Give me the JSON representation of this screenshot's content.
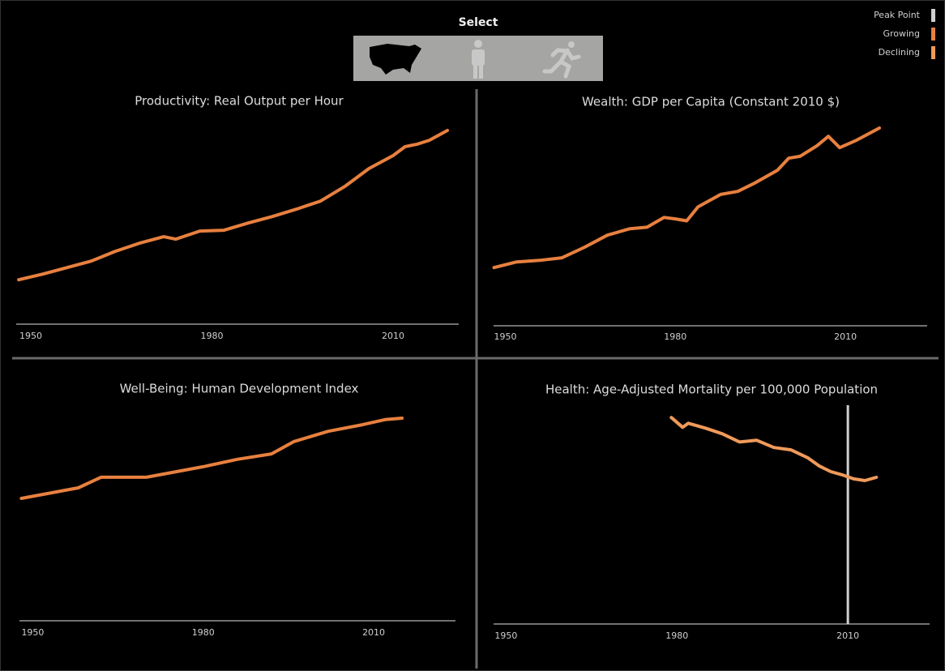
{
  "header": {
    "title": "Select"
  },
  "legend": [
    {
      "label": "Peak Point",
      "color": "#d0d0d0"
    },
    {
      "label": "Growing",
      "color": "#e8803f"
    },
    {
      "label": "Declining",
      "color": "#f09a5a"
    }
  ],
  "chart_data": [
    {
      "type": "line",
      "title": "Productivity: Real Output per Hour",
      "color": "#e8803f",
      "x": [
        1948,
        1952,
        1956,
        1960,
        1964,
        1968,
        1972,
        1974,
        1978,
        1982,
        1986,
        1990,
        1994,
        1998,
        2002,
        2006,
        2008,
        2010,
        2012,
        2014,
        2016,
        2019
      ],
      "values": [
        23.0,
        26.2,
        29.9,
        33.6,
        39.2,
        43.8,
        47.5,
        46.1,
        50.7,
        51.2,
        55.3,
        59.0,
        63.2,
        67.8,
        76.1,
        86.3,
        90.0,
        93.7,
        98.8,
        100.2,
        102.4,
        108.0
      ],
      "xlim": [
        1946,
        2022
      ],
      "xticks": [
        1950,
        1980,
        2010
      ],
      "ylim": [
        0,
        120
      ]
    },
    {
      "type": "line",
      "title": "Wealth: GDP per Capita (Constant 2010 $)",
      "color": "#e8803f",
      "x": [
        1948,
        1952,
        1956,
        1960,
        1964,
        1968,
        1972,
        1975,
        1978,
        1980,
        1982,
        1984,
        1988,
        1991,
        1994,
        1998,
        2000,
        2002,
        2005,
        2007,
        2009,
        2012,
        2016
      ],
      "values": [
        15000,
        16500,
        16900,
        17600,
        20400,
        23600,
        25300,
        25700,
        28300,
        27900,
        27400,
        31100,
        34400,
        35200,
        37400,
        40800,
        44000,
        44500,
        47300,
        49800,
        46800,
        48800,
        52000
      ],
      "xlim": [
        1946,
        2022
      ],
      "xticks": [
        1950,
        1980,
        2010
      ],
      "ylim": [
        0,
        55000
      ]
    },
    {
      "type": "line",
      "title": "Well-Being: Human Development Index",
      "color": "#e8803f",
      "x": [
        1948,
        1958,
        1962,
        1970,
        1980,
        1986,
        1992,
        1996,
        2002,
        2008,
        2012,
        2015
      ],
      "values": [
        0.7,
        0.729,
        0.758,
        0.758,
        0.787,
        0.807,
        0.822,
        0.856,
        0.884,
        0.902,
        0.916,
        0.92
      ],
      "xlim": [
        1946,
        2022
      ],
      "xticks": [
        1950,
        1980,
        2010
      ],
      "ylim": [
        0.4,
        1.0
      ]
    },
    {
      "type": "line",
      "title": "Health: Age-Adjusted Mortality per 100,000 Population",
      "color": "#f09a5a",
      "x": [
        1979,
        1981,
        1982,
        1985,
        1988,
        1991,
        1994,
        1997,
        2000,
        2003,
        2005,
        2007,
        2009,
        2011,
        2013,
        2015
      ],
      "values": [
        1100,
        1042,
        1066,
        1037,
        1003,
        955,
        965,
        922,
        908,
        860,
        812,
        779,
        760,
        736,
        726,
        745
      ],
      "peak_point": 2010,
      "xlim": [
        1946,
        2022
      ],
      "xticks": [
        1950,
        1980,
        2010
      ],
      "ylim": [
        0,
        1250
      ]
    }
  ]
}
